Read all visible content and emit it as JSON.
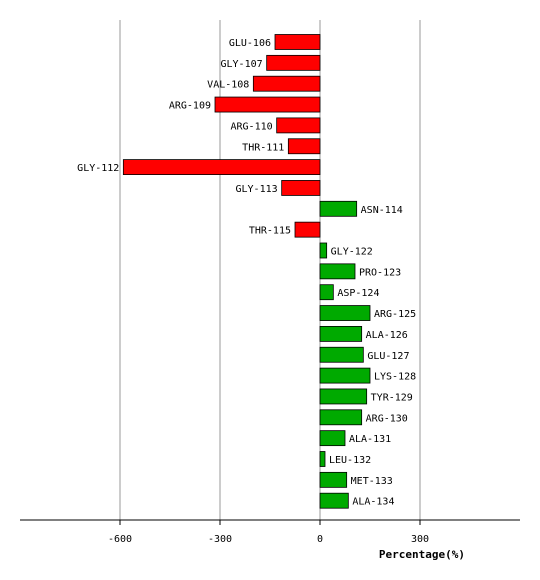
{
  "chart_data": {
    "type": "bar",
    "orientation": "horizontal",
    "xlabel": "Percentage(%)",
    "xlim": [
      -900,
      600
    ],
    "x_ticks": [
      -600,
      -300,
      0,
      300
    ],
    "x_tick_labels": [
      "-600",
      "-300",
      "0",
      "300"
    ],
    "grid": "vertical",
    "negative_color": "#ff0000",
    "positive_color": "#00aa00",
    "categories": [
      "GLU-106",
      "GLY-107",
      "VAL-108",
      "ARG-109",
      "ARG-110",
      "THR-111",
      "GLY-112",
      "GLY-113",
      "ASN-114",
      "THR-115",
      "GLY-122",
      "PRO-123",
      "ASP-124",
      "ARG-125",
      "ALA-126",
      "GLU-127",
      "LYS-128",
      "TYR-129",
      "ARG-130",
      "ALA-131",
      "LEU-132",
      "MET-133",
      "ALA-134"
    ],
    "values": [
      -135,
      -160,
      -200,
      -315,
      -130,
      -95,
      -590,
      -115,
      110,
      -75,
      20,
      105,
      40,
      150,
      125,
      130,
      150,
      140,
      125,
      75,
      15,
      80,
      85
    ]
  }
}
